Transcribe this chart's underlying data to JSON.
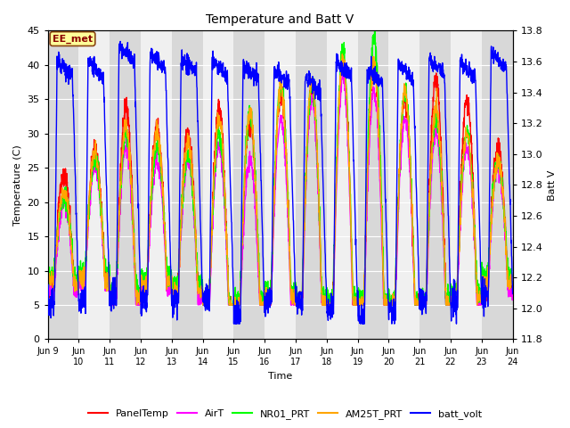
{
  "title": "Temperature and Batt V",
  "xlabel": "Time",
  "ylabel_left": "Temperature (C)",
  "ylabel_right": "Batt V",
  "annotation": "EE_met",
  "ylim_left": [
    0,
    45
  ],
  "ylim_right": [
    11.8,
    13.8
  ],
  "yticks_left": [
    0,
    5,
    10,
    15,
    20,
    25,
    30,
    35,
    40,
    45
  ],
  "yticks_right": [
    11.8,
    12.0,
    12.2,
    12.4,
    12.6,
    12.8,
    13.0,
    13.2,
    13.4,
    13.6,
    13.8
  ],
  "xtick_labels": [
    "Jun 9",
    "Jun\n10",
    "Jun\n11",
    "Jun\n12",
    "Jun\n13",
    "Jun\n14",
    "Jun\n15",
    "Jun\n16",
    "Jun\n17",
    "Jun\n18",
    "Jun\n19",
    "Jun\n20",
    "Jun\n21",
    "Jun\n22",
    "Jun\n23",
    "Jun\n24"
  ],
  "background_color": "#ffffff",
  "plot_bg_light": "#f0f0f0",
  "plot_bg_dark": "#d8d8d8",
  "series": {
    "PanelTemp": {
      "color": "#ff0000",
      "lw": 1.0
    },
    "AirT": {
      "color": "#ff00ff",
      "lw": 1.0
    },
    "NR01_PRT": {
      "color": "#00ff00",
      "lw": 1.0
    },
    "AM25T_PRT": {
      "color": "#ffa500",
      "lw": 1.0
    },
    "batt_volt": {
      "color": "#0000ff",
      "lw": 1.0
    }
  },
  "legend_entries": [
    "PanelTemp",
    "AirT",
    "NR01_PRT",
    "AM25T_PRT",
    "batt_volt"
  ],
  "legend_colors": [
    "#ff0000",
    "#ff00ff",
    "#00ff00",
    "#ffa500",
    "#0000ff"
  ]
}
